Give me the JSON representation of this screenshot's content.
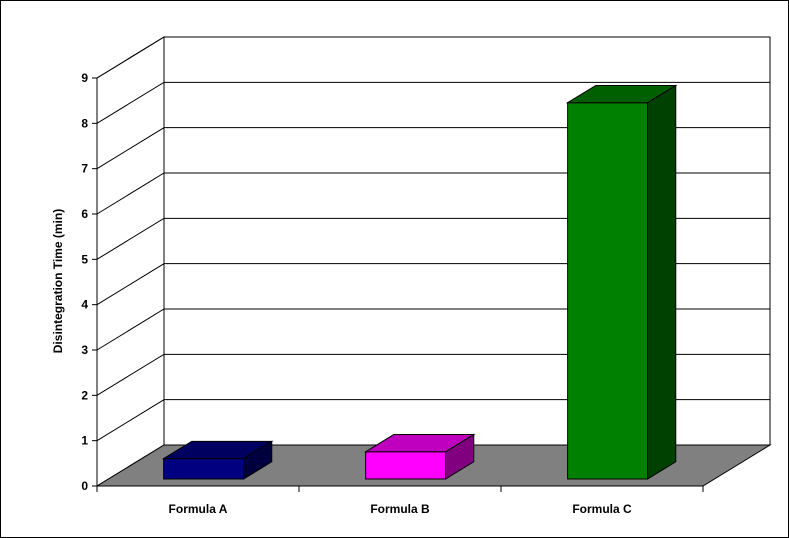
{
  "chart_data": {
    "type": "bar",
    "style": "3d",
    "title": "",
    "xlabel": "",
    "ylabel": "Disintegration Time (min)",
    "categories": [
      "Formula A",
      "Formula B",
      "Formula C"
    ],
    "values": [
      0.45,
      0.6,
      8.3
    ],
    "ylim": [
      0,
      9
    ],
    "yticks": [
      0,
      1,
      2,
      3,
      4,
      5,
      6,
      7,
      8,
      9
    ],
    "grid": true,
    "legend": "none",
    "colors": {
      "bars": [
        "#000080",
        "#ff00ff",
        "#008000"
      ],
      "floor": "#808080",
      "walls": "#ffffff",
      "gridline": "#000000"
    }
  }
}
